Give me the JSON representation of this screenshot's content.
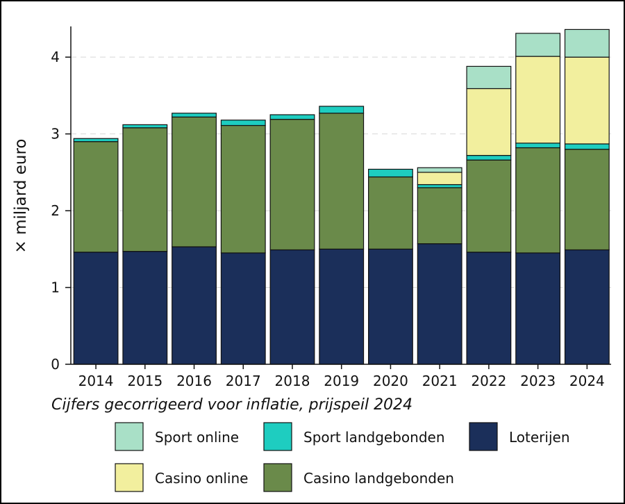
{
  "chart_data": {
    "type": "bar",
    "stacked": true,
    "ylabel": "× miljard euro",
    "note": "Cijfers gecorrigeerd voor inflatie, prijspeil 2024",
    "ylim": [
      0,
      4.4
    ],
    "yticks": [
      0,
      1,
      2,
      3,
      4
    ],
    "grid": "horizontal dashed",
    "legend_position": "bottom",
    "categories": [
      "2014",
      "2015",
      "2016",
      "2017",
      "2018",
      "2019",
      "2020",
      "2021",
      "2022",
      "2023",
      "2024"
    ],
    "series": [
      {
        "name": "Loterijen",
        "color": "#1b2f5a",
        "values": [
          1.46,
          1.47,
          1.53,
          1.45,
          1.49,
          1.5,
          1.5,
          1.57,
          1.46,
          1.45,
          1.49
        ]
      },
      {
        "name": "Casino landgebonden",
        "color": "#6a8a4a",
        "values": [
          1.44,
          1.61,
          1.69,
          1.66,
          1.7,
          1.77,
          0.94,
          0.73,
          1.2,
          1.37,
          1.31
        ]
      },
      {
        "name": "Sport landgebonden",
        "color": "#1ecdc0",
        "values": [
          0.04,
          0.04,
          0.05,
          0.07,
          0.06,
          0.09,
          0.1,
          0.04,
          0.06,
          0.06,
          0.07
        ]
      },
      {
        "name": "Casino online",
        "color": "#f2ef9e",
        "values": [
          0,
          0,
          0,
          0,
          0,
          0,
          0,
          0.16,
          0.87,
          1.13,
          1.13
        ]
      },
      {
        "name": "Sport online",
        "color": "#a9e0c7",
        "values": [
          0,
          0,
          0,
          0,
          0,
          0,
          0,
          0.06,
          0.29,
          0.3,
          0.36
        ]
      }
    ],
    "legend": [
      {
        "name": "Sport online",
        "color": "#a9e0c7"
      },
      {
        "name": "Sport landgebonden",
        "color": "#1ecdc0"
      },
      {
        "name": "Loterijen",
        "color": "#1b2f5a"
      },
      {
        "name": "Casino online",
        "color": "#f2ef9e"
      },
      {
        "name": "Casino landgebonden",
        "color": "#6a8a4a"
      }
    ]
  }
}
